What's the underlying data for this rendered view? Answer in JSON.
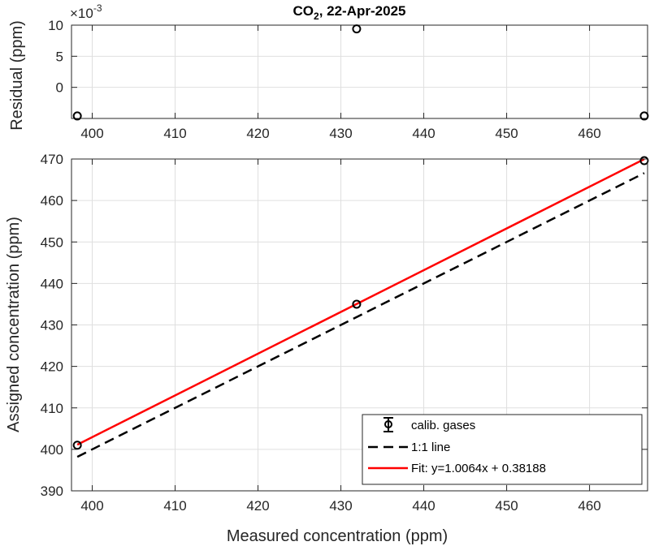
{
  "chart_data": [
    {
      "type": "scatter",
      "title_main": "CO",
      "title_sub": "2",
      "title_rest": ", 22-Apr-2025",
      "ylabel": "Residual (ppm)",
      "exponent_base": "×10",
      "exponent_power": "-3",
      "xlim": [
        397.5,
        467
      ],
      "ylim": [
        -0.005,
        0.01
      ],
      "xticks": [
        400,
        410,
        420,
        430,
        440,
        450,
        460
      ],
      "xtick_labels": [
        "400",
        "410",
        "420",
        "430",
        "440",
        "450",
        "460"
      ],
      "yticks": [
        0,
        0.005,
        0.01
      ],
      "ytick_labels": [
        "0",
        "5",
        "10"
      ],
      "grid": true,
      "series": [
        {
          "x": [
            398.2,
            431.9,
            466.6
          ],
          "y": [
            -0.0046,
            0.0094,
            -0.0046
          ]
        }
      ]
    },
    {
      "type": "line",
      "xlabel": "Measured concentration (ppm)",
      "ylabel": "Assigned concentration (ppm)",
      "xlim": [
        397.5,
        467
      ],
      "ylim": [
        390,
        470
      ],
      "xticks": [
        400,
        410,
        420,
        430,
        440,
        450,
        460
      ],
      "xtick_labels": [
        "400",
        "410",
        "420",
        "430",
        "440",
        "450",
        "460"
      ],
      "yticks": [
        390,
        400,
        410,
        420,
        430,
        440,
        450,
        460,
        470
      ],
      "ytick_labels": [
        "390",
        "400",
        "410",
        "420",
        "430",
        "440",
        "450",
        "460",
        "470"
      ],
      "grid": true,
      "legend_position": "bottom-right",
      "series": [
        {
          "name": "calib. gases",
          "kind": "errorbar-points",
          "x": [
            398.2,
            431.9,
            466.6
          ],
          "y": [
            401.0,
            435.0,
            469.6
          ]
        },
        {
          "name": "1:1 line",
          "kind": "dashed-line",
          "x": [
            398.2,
            466.6
          ],
          "y": [
            398.2,
            466.6
          ]
        },
        {
          "name": "Fit: y=1.0064x + 0.38188",
          "kind": "line",
          "x": [
            398.2,
            466.6
          ],
          "y": [
            401.13,
            469.97
          ]
        }
      ]
    }
  ],
  "colors": {
    "axes": "#262626",
    "grid": "#dfdfdf",
    "markers": "#000000",
    "one_to_one": "#000000",
    "fit": "#ff0000"
  }
}
